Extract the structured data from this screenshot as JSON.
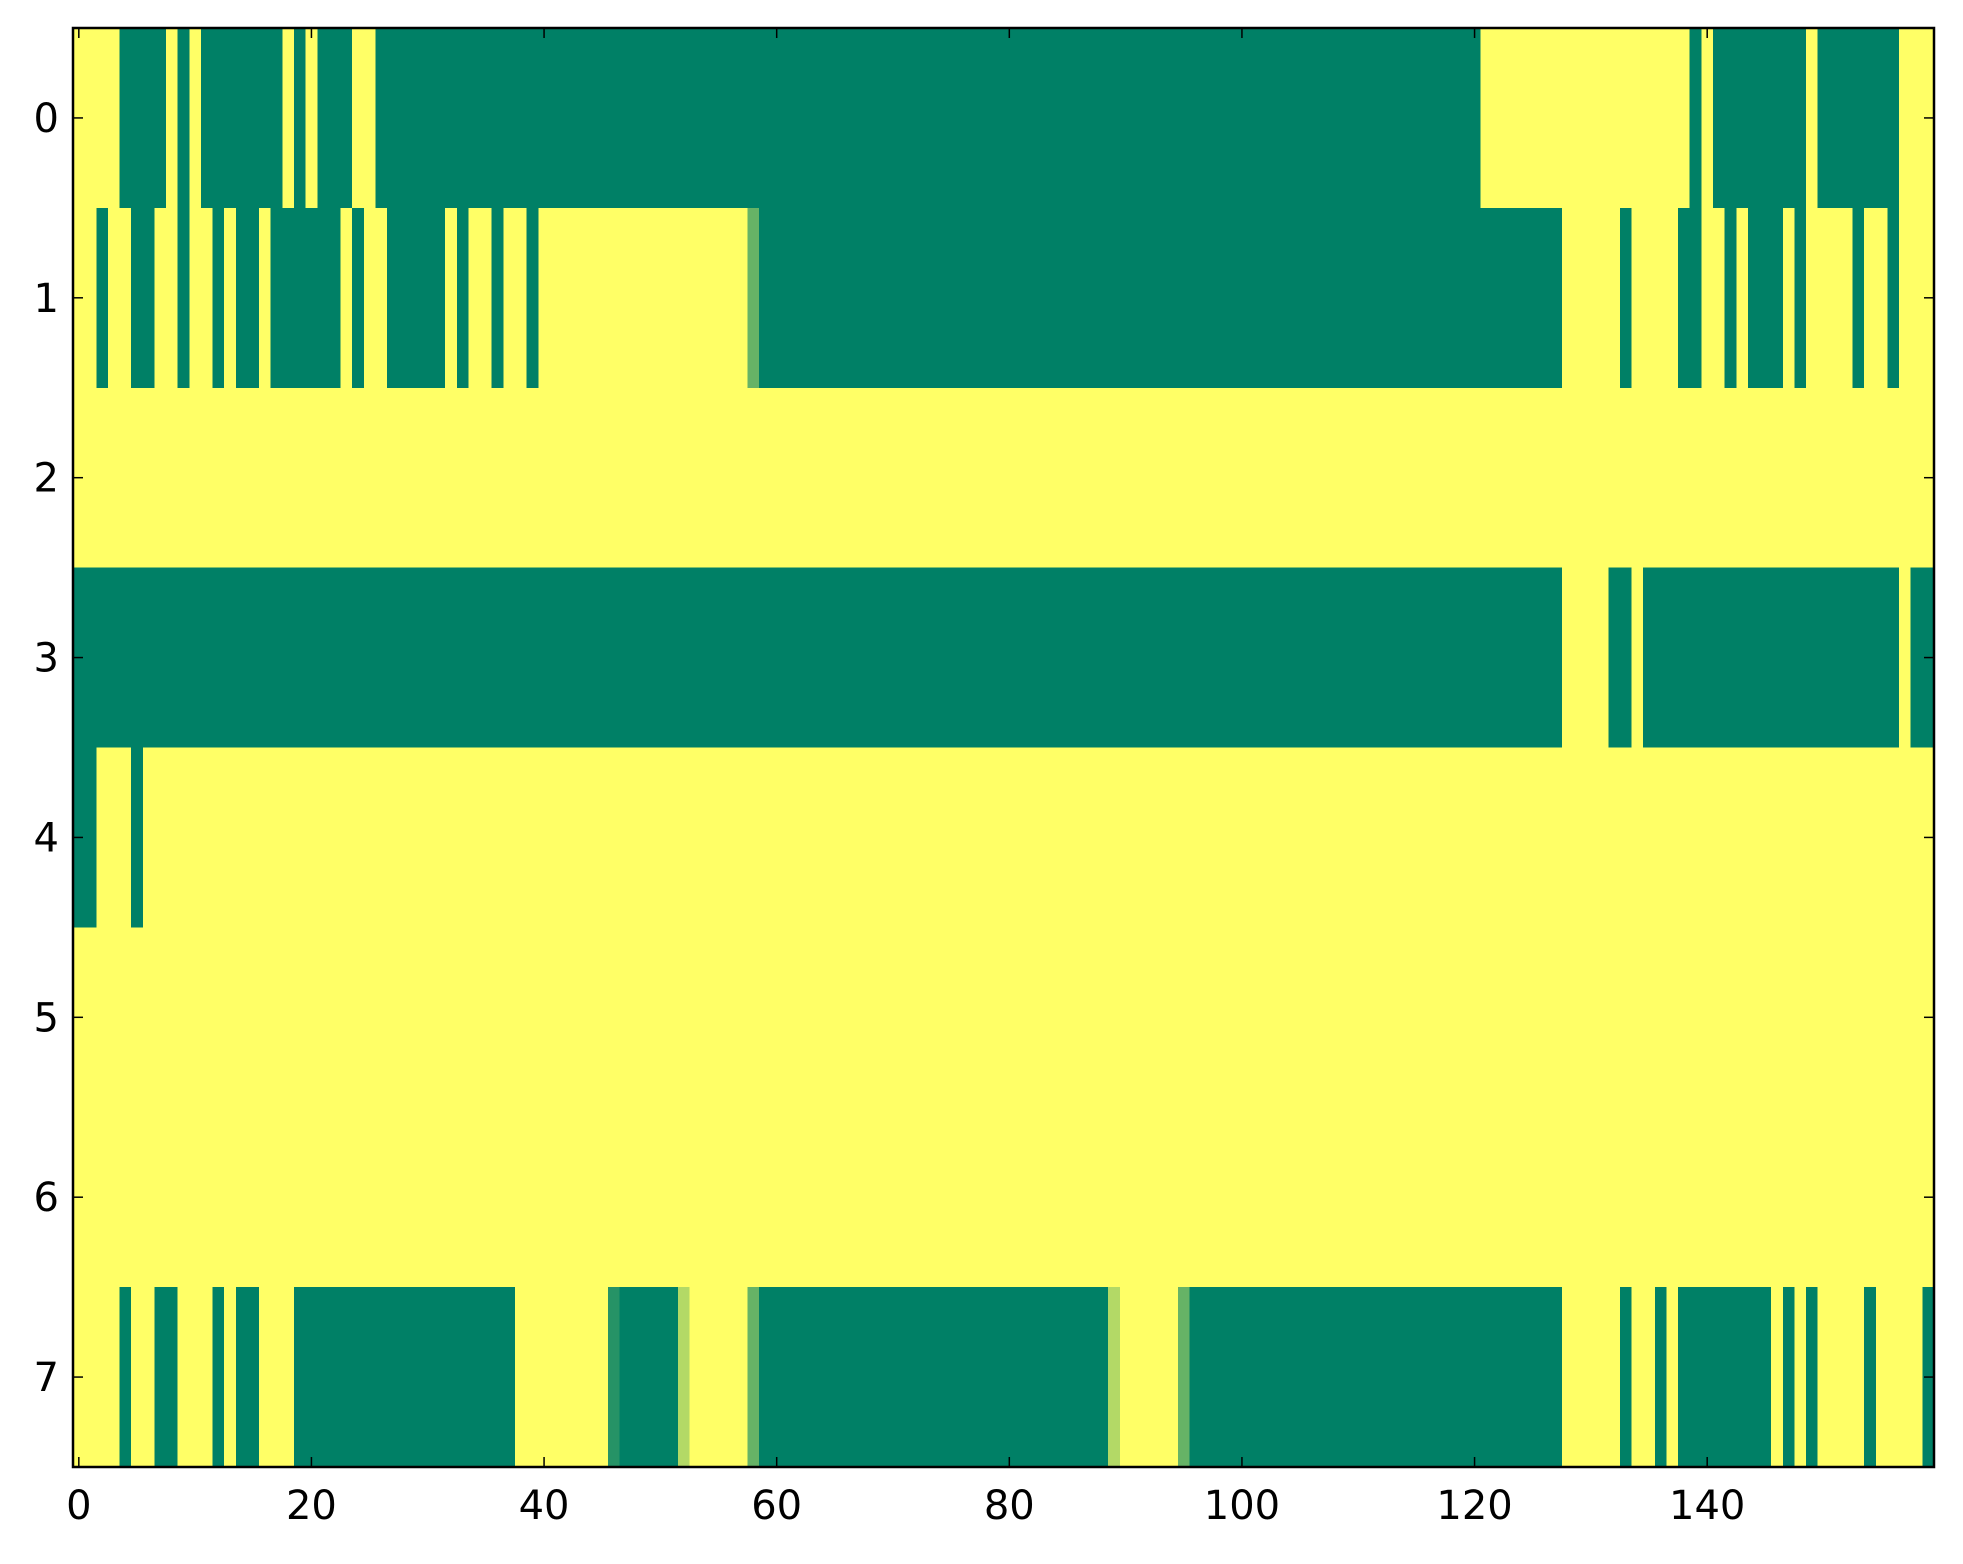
{
  "chart_data": {
    "type": "heatmap",
    "colormap": "summer",
    "zlim": [
      0,
      1
    ],
    "xlim": [
      -0.5,
      159.5
    ],
    "ylim": [
      7.5,
      -0.5
    ],
    "xticks": [
      0,
      20,
      40,
      60,
      80,
      100,
      120,
      140
    ],
    "yticks": [
      0,
      1,
      2,
      3,
      4,
      5,
      6,
      7
    ],
    "z": [
      [
        1,
        1,
        1,
        1,
        0,
        0,
        0,
        0,
        1,
        0,
        1,
        0,
        0,
        0,
        0,
        0,
        0,
        0,
        1,
        0,
        1,
        0,
        0,
        0,
        1,
        1,
        0,
        0,
        0,
        0,
        0,
        0,
        0,
        0,
        0,
        0,
        0,
        0,
        0,
        0,
        0,
        0,
        0,
        0,
        0,
        0,
        0,
        0,
        0,
        0,
        0,
        0,
        0,
        0,
        0,
        0,
        0,
        0,
        0,
        0,
        0,
        0,
        0,
        0,
        0,
        0,
        0,
        0,
        0,
        0,
        0,
        0,
        0,
        0,
        0,
        0,
        0,
        0,
        0,
        0,
        0,
        0,
        0,
        0,
        0,
        0,
        0,
        0,
        0,
        0,
        0,
        0,
        0,
        0,
        0,
        0,
        0,
        0,
        0,
        0,
        0,
        0,
        0,
        0,
        0,
        0,
        0,
        0,
        0,
        0,
        0,
        0,
        0,
        0,
        0,
        0,
        0,
        0,
        0,
        0,
        0,
        1,
        1,
        1,
        1,
        1,
        1,
        1,
        1,
        1,
        1,
        1,
        1,
        1,
        1,
        1,
        1,
        1,
        1,
        0,
        1,
        0,
        0,
        0,
        0,
        0,
        0,
        0,
        0,
        1,
        0,
        0,
        0,
        0,
        0,
        0,
        0,
        1,
        1,
        1
      ],
      [
        1,
        1,
        0,
        1,
        1,
        0,
        0,
        1,
        1,
        0,
        1,
        1,
        0,
        1,
        0,
        0,
        1,
        0,
        0,
        0,
        0,
        0,
        0,
        1,
        0,
        1,
        1,
        0,
        0,
        0,
        0,
        0,
        1,
        0,
        1,
        1,
        0,
        1,
        1,
        0,
        1,
        1,
        1,
        1,
        1,
        1,
        1,
        1,
        1,
        1,
        1,
        1,
        1,
        1,
        1,
        1,
        1,
        1,
        0.4,
        0,
        0,
        0,
        0,
        0,
        0,
        0,
        0,
        0,
        0,
        0,
        0,
        0,
        0,
        0,
        0,
        0,
        0,
        0,
        0,
        0,
        0,
        0,
        0,
        0,
        0,
        0,
        0,
        0,
        0,
        0,
        0,
        0,
        0,
        0,
        0,
        0,
        0,
        0,
        0,
        0,
        0,
        0,
        0,
        0,
        0,
        0,
        0,
        0,
        0,
        0,
        0,
        0,
        0,
        0,
        0,
        0,
        0,
        0,
        0,
        0,
        0,
        0,
        0,
        0,
        0,
        0,
        0,
        0,
        1,
        1,
        1,
        1,
        1,
        0,
        1,
        1,
        1,
        1,
        0,
        0,
        1,
        1,
        0,
        1,
        0,
        0,
        0,
        1,
        0,
        1,
        1,
        1,
        1,
        0,
        1,
        1,
        0,
        1,
        1,
        1
      ],
      [
        1,
        1,
        1,
        1,
        1,
        1,
        1,
        1,
        1,
        1,
        1,
        1,
        1,
        1,
        1,
        1,
        1,
        1,
        1,
        1,
        1,
        1,
        1,
        1,
        1,
        1,
        1,
        1,
        1,
        1,
        1,
        1,
        1,
        1,
        1,
        1,
        1,
        1,
        1,
        1,
        1,
        1,
        1,
        1,
        1,
        1,
        1,
        1,
        1,
        1,
        1,
        1,
        1,
        1,
        1,
        1,
        1,
        1,
        1,
        1,
        1,
        1,
        1,
        1,
        1,
        1,
        1,
        1,
        1,
        1,
        1,
        1,
        1,
        1,
        1,
        1,
        1,
        1,
        1,
        1,
        1,
        1,
        1,
        1,
        1,
        1,
        1,
        1,
        1,
        1,
        1,
        1,
        1,
        1,
        1,
        1,
        1,
        1,
        1,
        1,
        1,
        1,
        1,
        1,
        1,
        1,
        1,
        1,
        1,
        1,
        1,
        1,
        1,
        1,
        1,
        1,
        1,
        1,
        1,
        1,
        1,
        1,
        1,
        1,
        1,
        1,
        1,
        1,
        1,
        1,
        1,
        1,
        1,
        1,
        1,
        1,
        1,
        1,
        1,
        1,
        1,
        1,
        1,
        1,
        1,
        1,
        1,
        1,
        1,
        1,
        1,
        1,
        1,
        1,
        1,
        1,
        1,
        1,
        1,
        1
      ],
      [
        0,
        0,
        0,
        0,
        0,
        0,
        0,
        0,
        0,
        0,
        0,
        0,
        0,
        0,
        0,
        0,
        0,
        0,
        0,
        0,
        0,
        0,
        0,
        0,
        0,
        0,
        0,
        0,
        0,
        0,
        0,
        0,
        0,
        0,
        0,
        0,
        0,
        0,
        0,
        0,
        0,
        0,
        0,
        0,
        0,
        0,
        0,
        0,
        0,
        0,
        0,
        0,
        0,
        0,
        0,
        0,
        0,
        0,
        0,
        0,
        0,
        0,
        0,
        0,
        0,
        0,
        0,
        0,
        0,
        0,
        0,
        0,
        0,
        0,
        0,
        0,
        0,
        0,
        0,
        0,
        0,
        0,
        0,
        0,
        0,
        0,
        0,
        0,
        0,
        0,
        0,
        0,
        0,
        0,
        0,
        0,
        0,
        0,
        0,
        0,
        0,
        0,
        0,
        0,
        0,
        0,
        0,
        0,
        0,
        0,
        0,
        0,
        0,
        0,
        0,
        0,
        0,
        0,
        0,
        0,
        0,
        0,
        0,
        0,
        0,
        0,
        0,
        0,
        1,
        1,
        1,
        1,
        0,
        0,
        1,
        0,
        0,
        0,
        0,
        0,
        0,
        0,
        0,
        0,
        0,
        0,
        0,
        0,
        0,
        0,
        0,
        0,
        0,
        0,
        0,
        0,
        0,
        1,
        0,
        0
      ],
      [
        0,
        0,
        1,
        1,
        1,
        0,
        1,
        1,
        1,
        1,
        1,
        1,
        1,
        1,
        1,
        1,
        1,
        1,
        1,
        1,
        1,
        1,
        1,
        1,
        1,
        1,
        1,
        1,
        1,
        1,
        1,
        1,
        1,
        1,
        1,
        1,
        1,
        1,
        1,
        1,
        1,
        1,
        1,
        1,
        1,
        1,
        1,
        1,
        1,
        1,
        1,
        1,
        1,
        1,
        1,
        1,
        1,
        1,
        1,
        1,
        1,
        1,
        1,
        1,
        1,
        1,
        1,
        1,
        1,
        1,
        1,
        1,
        1,
        1,
        1,
        1,
        1,
        1,
        1,
        1,
        1,
        1,
        1,
        1,
        1,
        1,
        1,
        1,
        1,
        1,
        1,
        1,
        1,
        1,
        1,
        1,
        1,
        1,
        1,
        1,
        1,
        1,
        1,
        1,
        1,
        1,
        1,
        1,
        1,
        1,
        1,
        1,
        1,
        1,
        1,
        1,
        1,
        1,
        1,
        1,
        1,
        1,
        1,
        1,
        1,
        1,
        1,
        1,
        1,
        1,
        1,
        1,
        1,
        1,
        1,
        1,
        1,
        1,
        1,
        1,
        1,
        1,
        1,
        1,
        1,
        1,
        1,
        1,
        1,
        1,
        1,
        1,
        1,
        1,
        1,
        1,
        1,
        1,
        1,
        1
      ],
      [
        1,
        1,
        1,
        1,
        1,
        1,
        1,
        1,
        1,
        1,
        1,
        1,
        1,
        1,
        1,
        1,
        1,
        1,
        1,
        1,
        1,
        1,
        1,
        1,
        1,
        1,
        1,
        1,
        1,
        1,
        1,
        1,
        1,
        1,
        1,
        1,
        1,
        1,
        1,
        1,
        1,
        1,
        1,
        1,
        1,
        1,
        1,
        1,
        1,
        1,
        1,
        1,
        1,
        1,
        1,
        1,
        1,
        1,
        1,
        1,
        1,
        1,
        1,
        1,
        1,
        1,
        1,
        1,
        1,
        1,
        1,
        1,
        1,
        1,
        1,
        1,
        1,
        1,
        1,
        1,
        1,
        1,
        1,
        1,
        1,
        1,
        1,
        1,
        1,
        1,
        1,
        1,
        1,
        1,
        1,
        1,
        1,
        1,
        1,
        1,
        1,
        1,
        1,
        1,
        1,
        1,
        1,
        1,
        1,
        1,
        1,
        1,
        1,
        1,
        1,
        1,
        1,
        1,
        1,
        1,
        1,
        1,
        1,
        1,
        1,
        1,
        1,
        1,
        1,
        1,
        1,
        1,
        1,
        1,
        1,
        1,
        1,
        1,
        1,
        1,
        1,
        1,
        1,
        1,
        1,
        1,
        1,
        1,
        1,
        1,
        1,
        1,
        1,
        1,
        1,
        1,
        1,
        1,
        1,
        1
      ],
      [
        1,
        1,
        1,
        1,
        1,
        1,
        1,
        1,
        1,
        1,
        1,
        1,
        1,
        1,
        1,
        1,
        1,
        1,
        1,
        1,
        1,
        1,
        1,
        1,
        1,
        1,
        1,
        1,
        1,
        1,
        1,
        1,
        1,
        1,
        1,
        1,
        1,
        1,
        1,
        1,
        1,
        1,
        1,
        1,
        1,
        1,
        1,
        1,
        1,
        1,
        1,
        1,
        1,
        1,
        1,
        1,
        1,
        1,
        1,
        1,
        1,
        1,
        1,
        1,
        1,
        1,
        1,
        1,
        1,
        1,
        1,
        1,
        1,
        1,
        1,
        1,
        1,
        1,
        1,
        1,
        1,
        1,
        1,
        1,
        1,
        1,
        1,
        1,
        1,
        1,
        1,
        1,
        1,
        1,
        1,
        1,
        1,
        1,
        1,
        1,
        1,
        1,
        1,
        1,
        1,
        1,
        1,
        1,
        1,
        1,
        1,
        1,
        1,
        1,
        1,
        1,
        1,
        1,
        1,
        1,
        1,
        1,
        1,
        1,
        1,
        1,
        1,
        1,
        1,
        1,
        1,
        1,
        1,
        1,
        1,
        1,
        1,
        1,
        1,
        1,
        1,
        1,
        1,
        1,
        1,
        1,
        1,
        1,
        1,
        1,
        1,
        1,
        1,
        1,
        1,
        1,
        1,
        1,
        1,
        1
      ],
      [
        1,
        1,
        1,
        1,
        0,
        1,
        1,
        0,
        0,
        1,
        1,
        1,
        0,
        1,
        0,
        0,
        1,
        1,
        1,
        0,
        0,
        0,
        0,
        0,
        0,
        0,
        0,
        0,
        0,
        0,
        0,
        0,
        0,
        0,
        0,
        0,
        0,
        0,
        1,
        1,
        1,
        1,
        1,
        1,
        1,
        1,
        0.15,
        0,
        0,
        0,
        0,
        0,
        0.7,
        1,
        1,
        1,
        1,
        1,
        0.4,
        0,
        0,
        0,
        0,
        0,
        0,
        0,
        0,
        0,
        0,
        0,
        0,
        0,
        0,
        0,
        0,
        0,
        0,
        0,
        0,
        0,
        0,
        0,
        0,
        0,
        0,
        0,
        0,
        0,
        0,
        0.7,
        1,
        1,
        1,
        1,
        1,
        0.4,
        0,
        0,
        0,
        0,
        0,
        0,
        0,
        0,
        0,
        0,
        0,
        0,
        0,
        0,
        0,
        0,
        0,
        0,
        0,
        0,
        0,
        0,
        0,
        0,
        0,
        0,
        0,
        0,
        0,
        0,
        0,
        0,
        1,
        1,
        1,
        1,
        1,
        0,
        1,
        1,
        0,
        1,
        0,
        0,
        0,
        0,
        0,
        0,
        0,
        0,
        1,
        0,
        1,
        0,
        1,
        1,
        1,
        1,
        0,
        1,
        1,
        1,
        1,
        0
      ]
    ]
  }
}
